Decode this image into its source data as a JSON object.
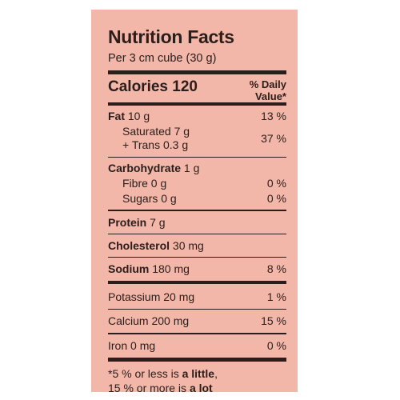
{
  "title": "Nutrition Facts",
  "serving": "Per 3 cm cube (30 g)",
  "calories_label": "Calories",
  "calories_value": "120",
  "dv_header_line1": "% Daily",
  "dv_header_line2": "Value*",
  "nutrients": {
    "fat": {
      "label": "Fat",
      "amount": "10 g",
      "dv": "13 %"
    },
    "saturated": {
      "label": "Saturated 7 g"
    },
    "trans": {
      "label": "+ Trans 0.3 g"
    },
    "sat_trans_dv": "37 %",
    "carbohydrate": {
      "label": "Carbohydrate",
      "amount": "1 g"
    },
    "fibre": {
      "label": "Fibre 0 g",
      "dv": "0 %"
    },
    "sugars": {
      "label": "Sugars 0 g",
      "dv": "0 %"
    },
    "protein": {
      "label": "Protein",
      "amount": "7 g"
    },
    "cholesterol": {
      "label": "Cholesterol",
      "amount": "30 mg"
    },
    "sodium": {
      "label": "Sodium",
      "amount": "180 mg",
      "dv": "8 %"
    },
    "potassium": {
      "label": "Potassium 20 mg",
      "dv": "1 %"
    },
    "calcium": {
      "label": "Calcium 200 mg",
      "dv": "15 %"
    },
    "iron": {
      "label": "Iron 0 mg",
      "dv": "0 %"
    }
  },
  "footnote": {
    "part1": "*5 % or less is ",
    "bold1": "a little",
    "part2": ",",
    "part3": "15 % or more is ",
    "bold2": "a lot"
  },
  "colors": {
    "panel": "#f3b7a9",
    "ink": "#2a1d1a"
  }
}
